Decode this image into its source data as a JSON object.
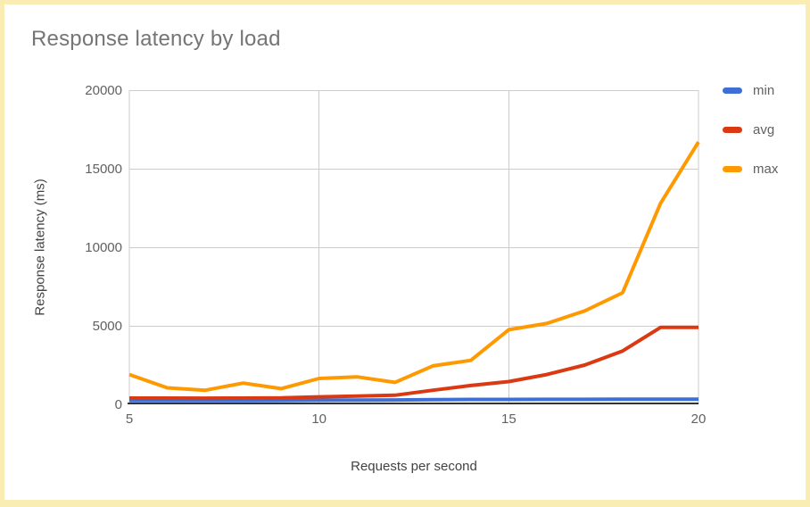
{
  "title": "Response latency by load",
  "frame": {
    "border_color": "#FAEDB3",
    "background": "#FFFFFF"
  },
  "axes": {
    "x_title": "Requests per second",
    "y_title": "Response latency (ms)",
    "x_tick_labels": [
      "5",
      "10",
      "15",
      "20"
    ],
    "y_tick_labels": [
      "0",
      "5000",
      "10000",
      "15000",
      "20000"
    ],
    "gridline_color": "#CCCCCC",
    "axis_line_color": "#333333",
    "tick_label_color": "#616161"
  },
  "legend": {
    "position": "right",
    "items": [
      {
        "label": "min",
        "color": "#3D6FD4"
      },
      {
        "label": "avg",
        "color": "#DB3912"
      },
      {
        "label": "max",
        "color": "#FF9900"
      }
    ]
  },
  "chart_data": {
    "type": "line",
    "title": "Response latency by load",
    "xlabel": "Requests per second",
    "ylabel": "Response latency (ms)",
    "x": [
      5,
      6,
      7,
      8,
      9,
      10,
      11,
      12,
      13,
      14,
      15,
      16,
      17,
      18,
      19,
      20
    ],
    "series": [
      {
        "name": "min",
        "color": "#3D6FD4",
        "values": [
          240,
          240,
          245,
          245,
          250,
          260,
          270,
          280,
          300,
          310,
          315,
          320,
          320,
          325,
          330,
          330
        ]
      },
      {
        "name": "avg",
        "color": "#DB3912",
        "values": [
          400,
          395,
          390,
          400,
          410,
          480,
          520,
          580,
          900,
          1200,
          1450,
          1900,
          2500,
          3400,
          4900,
          4900
        ]
      },
      {
        "name": "max",
        "color": "#FF9900",
        "values": [
          1900,
          1050,
          900,
          1350,
          1000,
          1650,
          1750,
          1400,
          2450,
          2800,
          4750,
          5150,
          5950,
          7100,
          12800,
          16700
        ]
      }
    ],
    "xlim": [
      5,
      20
    ],
    "ylim": [
      0,
      20000
    ],
    "x_ticks": [
      5,
      10,
      15,
      20
    ],
    "y_ticks": [
      0,
      5000,
      10000,
      15000,
      20000
    ],
    "grid": true,
    "legend_position": "right"
  }
}
